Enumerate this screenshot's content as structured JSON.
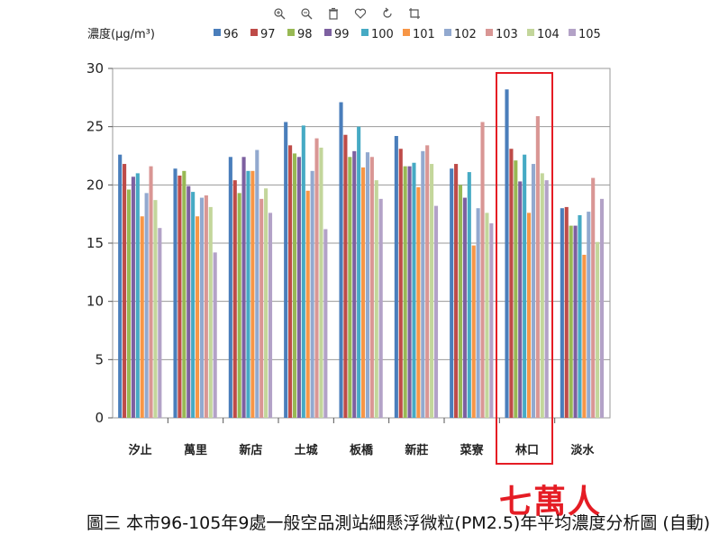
{
  "toolbar": {
    "icons": [
      "zoom-in-icon",
      "zoom-out-icon",
      "trash-icon",
      "heart-icon",
      "rotate-icon",
      "crop-icon"
    ]
  },
  "caption": "圖三 本市96-105年9處一般空品測站細懸浮微粒(PM2.5)年平均濃度分析圖 (自動)",
  "annotation": {
    "label": "七萬人",
    "highlight_category": "林口",
    "color": "#e51c24"
  },
  "chart_data": {
    "type": "bar",
    "title": "",
    "xlabel": "",
    "ylabel": "濃度(μg/m³)",
    "ylim": [
      0,
      30
    ],
    "yticks": [
      0,
      5,
      10,
      15,
      20,
      25,
      30
    ],
    "grid": true,
    "legend_position": "top",
    "categories": [
      "汐止",
      "萬里",
      "新店",
      "土城",
      "板橋",
      "新莊",
      "菜寮",
      "林口",
      "淡水"
    ],
    "series": [
      {
        "name": "96",
        "color": "#4a7ebb",
        "values": [
          22.6,
          21.4,
          22.4,
          25.4,
          27.1,
          24.2,
          21.4,
          28.2,
          18.0
        ]
      },
      {
        "name": "97",
        "color": "#be4b48",
        "values": [
          21.8,
          20.8,
          20.4,
          23.4,
          24.3,
          23.1,
          21.8,
          23.1,
          18.1
        ]
      },
      {
        "name": "98",
        "color": "#98b954",
        "values": [
          19.6,
          21.2,
          19.3,
          22.7,
          22.4,
          21.6,
          20.0,
          22.1,
          16.5
        ]
      },
      {
        "name": "99",
        "color": "#7d60a0",
        "values": [
          20.7,
          19.9,
          22.4,
          22.4,
          22.9,
          21.6,
          18.9,
          20.3,
          16.5
        ]
      },
      {
        "name": "100",
        "color": "#46aac4",
        "values": [
          21.0,
          19.4,
          21.2,
          25.1,
          25.0,
          21.9,
          21.1,
          22.6,
          17.4
        ]
      },
      {
        "name": "101",
        "color": "#f79646",
        "values": [
          17.3,
          17.3,
          21.2,
          19.5,
          21.5,
          19.8,
          14.8,
          17.6,
          14.0
        ]
      },
      {
        "name": "102",
        "color": "#92a9cf",
        "values": [
          19.3,
          18.9,
          23.0,
          21.2,
          22.8,
          22.9,
          18.0,
          21.8,
          17.7
        ]
      },
      {
        "name": "103",
        "color": "#d99694",
        "values": [
          21.6,
          19.1,
          18.8,
          24.0,
          22.4,
          23.4,
          25.4,
          25.9,
          20.6
        ]
      },
      {
        "name": "104",
        "color": "#c3d69b",
        "values": [
          18.7,
          18.1,
          19.7,
          23.2,
          20.4,
          21.8,
          17.6,
          21.0,
          15.1
        ]
      },
      {
        "name": "105",
        "color": "#b3a2c7",
        "values": [
          16.3,
          14.2,
          17.6,
          16.2,
          18.8,
          18.2,
          16.7,
          20.4,
          18.8
        ]
      }
    ]
  }
}
